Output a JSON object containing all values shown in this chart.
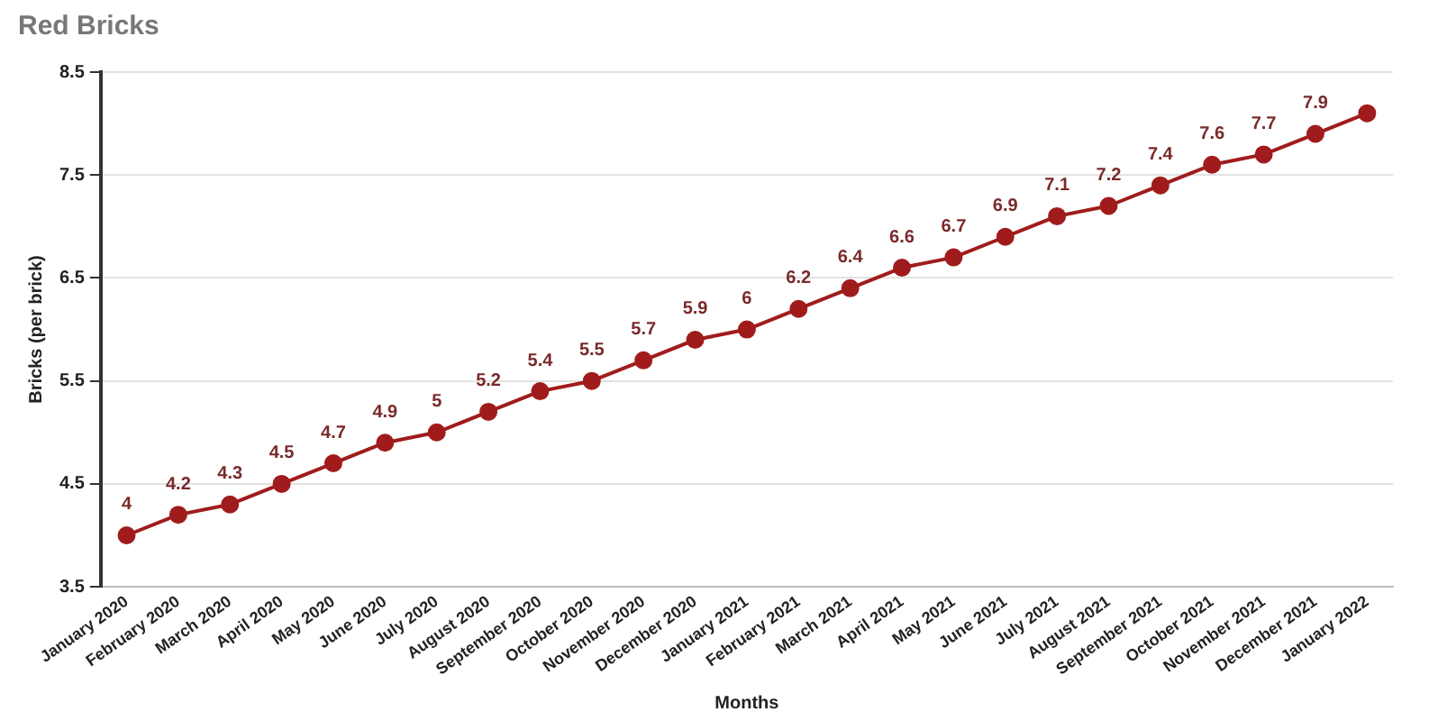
{
  "chart_data": {
    "type": "line",
    "title": "Red Bricks",
    "xlabel": "Months",
    "ylabel": "Bricks (per brick)",
    "categories": [
      "January 2020",
      "February 2020",
      "March 2020",
      "April 2020",
      "May 2020",
      "June 2020",
      "July 2020",
      "August 2020",
      "September 2020",
      "October 2020",
      "November 2020",
      "December 2020",
      "January 2021",
      "February 2021",
      "March 2021",
      "April 2021",
      "May 2021",
      "June 2021",
      "July 2021",
      "August 2021",
      "September 2021",
      "October 2021",
      "November 2021",
      "December 2021",
      "January 2022"
    ],
    "values": [
      4,
      4.2,
      4.3,
      4.5,
      4.7,
      4.9,
      5,
      5.2,
      5.4,
      5.5,
      5.7,
      5.9,
      6,
      6.2,
      6.4,
      6.6,
      6.7,
      6.9,
      7.1,
      7.2,
      7.4,
      7.6,
      7.7,
      7.9,
      8.1
    ],
    "value_labels": [
      "4",
      "4.2",
      "4.3",
      "4.5",
      "4.7",
      "4.9",
      "5",
      "5.2",
      "5.4",
      "5.5",
      "5.7",
      "5.9",
      "6",
      "6.2",
      "6.4",
      "6.6",
      "6.7",
      "6.9",
      "7.1",
      "7.2",
      "7.4",
      "7.6",
      "7.7",
      "7.9",
      null
    ],
    "color": "#a01c1c",
    "ylim": [
      3.5,
      8.5
    ],
    "yticks": [
      3.5,
      4.5,
      5.5,
      6.5,
      7.5,
      8.5
    ],
    "grid": "y",
    "legend": false,
    "marker": "circle",
    "line_style": "solid"
  }
}
